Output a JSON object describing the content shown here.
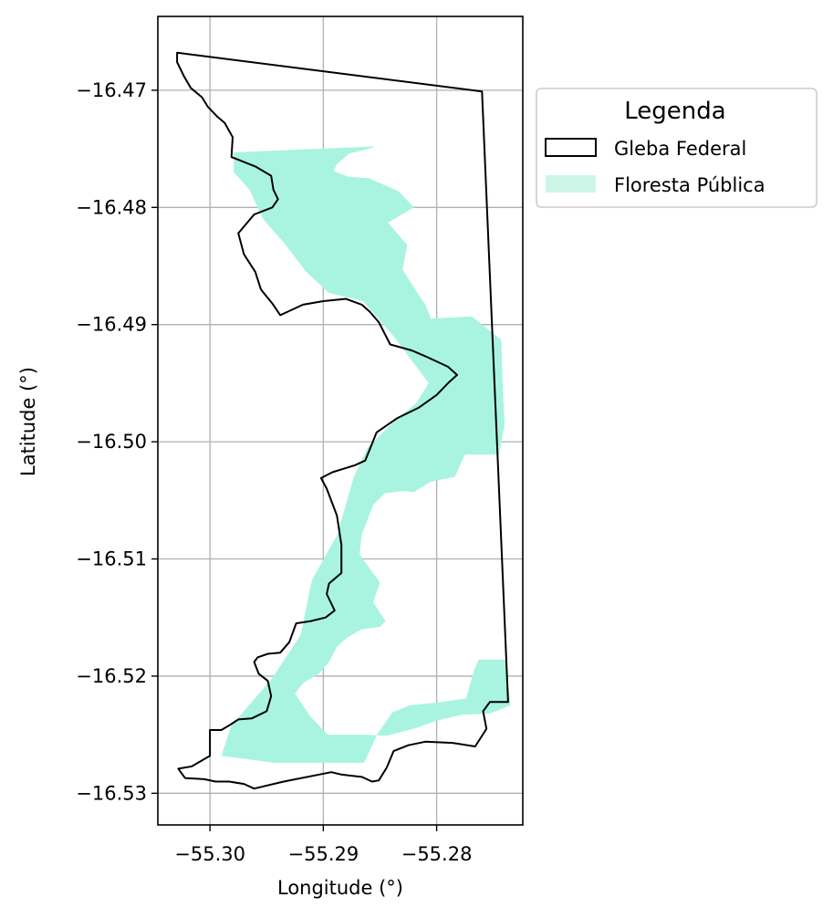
{
  "chart_data": {
    "type": "map",
    "xlabel": "Longitude (°)",
    "ylabel": "Latitude (°)",
    "xlim": [
      -55.3046,
      -55.2724
    ],
    "ylim": [
      -16.5327,
      -16.4637
    ],
    "xticks": [
      -55.3,
      -55.29,
      -55.28
    ],
    "xtick_labels": [
      "−55.30",
      "−55.29",
      "−55.28"
    ],
    "yticks": [
      -16.47,
      -16.48,
      -16.49,
      -16.5,
      -16.51,
      -16.52,
      -16.53
    ],
    "ytick_labels": [
      "−16.47",
      "−16.48",
      "−16.49",
      "−16.50",
      "−16.51",
      "−16.52",
      "−16.53"
    ],
    "grid": true,
    "legend": {
      "title": "Legenda",
      "position": "outside-top-right",
      "entries": [
        {
          "label": "Gleba Federal",
          "style": "outline",
          "edge": "#000000",
          "fill": "none"
        },
        {
          "label": "Floresta Pública",
          "style": "fill",
          "fill": "#cdf6e9"
        }
      ]
    },
    "layers": [
      {
        "name": "Floresta Pública",
        "kind": "polygon",
        "fill": "#a8f4e0",
        "coords": [
          [
            -55.2979,
            -16.4753
          ],
          [
            -55.2856,
            -16.4748
          ],
          [
            -55.2856,
            -16.4749
          ],
          [
            -55.2877,
            -16.4754
          ],
          [
            -55.2888,
            -16.4763
          ],
          [
            -55.2891,
            -16.4769
          ],
          [
            -55.2877,
            -16.4774
          ],
          [
            -55.286,
            -16.4775
          ],
          [
            -55.2834,
            -16.4786
          ],
          [
            -55.282,
            -16.48
          ],
          [
            -55.2843,
            -16.4813
          ],
          [
            -55.2826,
            -16.4832
          ],
          [
            -55.283,
            -16.4853
          ],
          [
            -55.2817,
            -16.4873
          ],
          [
            -55.281,
            -16.4883
          ],
          [
            -55.2805,
            -16.4895
          ],
          [
            -55.2769,
            -16.4893
          ],
          [
            -55.2743,
            -16.4913
          ],
          [
            -55.2742,
            -16.4945
          ],
          [
            -55.274,
            -16.4985
          ],
          [
            -55.2745,
            -16.5011
          ],
          [
            -55.2775,
            -16.5011
          ],
          [
            -55.2784,
            -16.503
          ],
          [
            -55.2805,
            -16.5034
          ],
          [
            -55.282,
            -16.5043
          ],
          [
            -55.283,
            -16.5042
          ],
          [
            -55.2846,
            -16.5044
          ],
          [
            -55.2856,
            -16.5054
          ],
          [
            -55.2866,
            -16.5079
          ],
          [
            -55.2868,
            -16.5096
          ],
          [
            -55.2857,
            -16.5111
          ],
          [
            -55.285,
            -16.512
          ],
          [
            -55.2856,
            -16.5137
          ],
          [
            -55.2845,
            -16.5153
          ],
          [
            -55.285,
            -16.5158
          ],
          [
            -55.2866,
            -16.516
          ],
          [
            -55.2879,
            -16.5167
          ],
          [
            -55.2888,
            -16.5175
          ],
          [
            -55.2895,
            -16.5188
          ],
          [
            -55.2904,
            -16.5198
          ],
          [
            -55.2918,
            -16.5206
          ],
          [
            -55.2925,
            -16.5215
          ],
          [
            -55.2911,
            -16.5235
          ],
          [
            -55.2896,
            -16.525
          ],
          [
            -55.2865,
            -16.525
          ],
          [
            -55.2844,
            -16.5251
          ],
          [
            -55.2817,
            -16.5244
          ],
          [
            -55.28,
            -16.5238
          ],
          [
            -55.2778,
            -16.5233
          ],
          [
            -55.2753,
            -16.5232
          ],
          [
            -55.2735,
            -16.5225
          ],
          [
            -55.2739,
            -16.5186
          ],
          [
            -55.2763,
            -16.5186
          ],
          [
            -55.2767,
            -16.5195
          ],
          [
            -55.2774,
            -16.5219
          ],
          [
            -55.2795,
            -16.5222
          ],
          [
            -55.2824,
            -16.5225
          ],
          [
            -55.2839,
            -16.5231
          ],
          [
            -55.2852,
            -16.5249
          ],
          [
            -55.2864,
            -16.5274
          ],
          [
            -55.2943,
            -16.5274
          ],
          [
            -55.299,
            -16.5268
          ],
          [
            -55.2981,
            -16.5242
          ],
          [
            -55.2946,
            -16.5203
          ],
          [
            -55.292,
            -16.5165
          ],
          [
            -55.291,
            -16.5118
          ],
          [
            -55.2888,
            -16.508
          ],
          [
            -55.2873,
            -16.503
          ],
          [
            -55.2861,
            -16.5005
          ],
          [
            -55.2838,
            -16.4983
          ],
          [
            -55.2818,
            -16.4967
          ],
          [
            -55.2807,
            -16.495
          ],
          [
            -55.2838,
            -16.491
          ],
          [
            -55.2865,
            -16.488
          ],
          [
            -55.2895,
            -16.4873
          ],
          [
            -55.2915,
            -16.4855
          ],
          [
            -55.2935,
            -16.483
          ],
          [
            -55.2953,
            -16.481
          ],
          [
            -55.2965,
            -16.4785
          ],
          [
            -55.2979,
            -16.477
          ]
        ]
      },
      {
        "name": "Gleba Federal",
        "kind": "polygon",
        "edge": "#000000",
        "fill": "none",
        "coords": [
          [
            -55.3029,
            -16.4668
          ],
          [
            -55.276,
            -16.4701
          ],
          [
            -55.2737,
            -16.5222
          ],
          [
            -55.2753,
            -16.5222
          ],
          [
            -55.2759,
            -16.523
          ],
          [
            -55.2756,
            -16.5245
          ],
          [
            -55.2766,
            -16.526
          ],
          [
            -55.2786,
            -16.5257
          ],
          [
            -55.281,
            -16.5256
          ],
          [
            -55.2825,
            -16.5259
          ],
          [
            -55.2838,
            -16.5264
          ],
          [
            -55.2844,
            -16.5278
          ],
          [
            -55.2851,
            -16.5289
          ],
          [
            -55.2857,
            -16.529
          ],
          [
            -55.2866,
            -16.5286
          ],
          [
            -55.2884,
            -16.5284
          ],
          [
            -55.2893,
            -16.5282
          ],
          [
            -55.2935,
            -16.529
          ],
          [
            -55.2961,
            -16.5296
          ],
          [
            -55.297,
            -16.5292
          ],
          [
            -55.2983,
            -16.529
          ],
          [
            -55.2995,
            -16.529
          ],
          [
            -55.3005,
            -16.5288
          ],
          [
            -55.3022,
            -16.5287
          ],
          [
            -55.3028,
            -16.5279
          ],
          [
            -55.3016,
            -16.5277
          ],
          [
            -55.3,
            -16.5268
          ],
          [
            -55.3,
            -16.5246
          ],
          [
            -55.299,
            -16.5246
          ],
          [
            -55.2983,
            -16.5242
          ],
          [
            -55.2975,
            -16.5237
          ],
          [
            -55.2963,
            -16.5236
          ],
          [
            -55.295,
            -16.523
          ],
          [
            -55.2946,
            -16.5217
          ],
          [
            -55.2949,
            -16.5204
          ],
          [
            -55.2957,
            -16.5198
          ],
          [
            -55.2961,
            -16.5188
          ],
          [
            -55.2958,
            -16.5184
          ],
          [
            -55.2949,
            -16.5181
          ],
          [
            -55.2938,
            -16.518
          ],
          [
            -55.293,
            -16.5171
          ],
          [
            -55.2924,
            -16.5155
          ],
          [
            -55.2911,
            -16.5153
          ],
          [
            -55.2898,
            -16.515
          ],
          [
            -55.289,
            -16.5144
          ],
          [
            -55.2897,
            -16.513
          ],
          [
            -55.2895,
            -16.5121
          ],
          [
            -55.2884,
            -16.5112
          ],
          [
            -55.2884,
            -16.5088
          ],
          [
            -55.2888,
            -16.5063
          ],
          [
            -55.2897,
            -16.504
          ],
          [
            -55.2902,
            -16.5031
          ],
          [
            -55.2892,
            -16.5026
          ],
          [
            -55.2872,
            -16.502
          ],
          [
            -55.2863,
            -16.5016
          ],
          [
            -55.2853,
            -16.4992
          ],
          [
            -55.2835,
            -16.498
          ],
          [
            -55.2816,
            -16.4971
          ],
          [
            -55.28,
            -16.496
          ],
          [
            -55.279,
            -16.495
          ],
          [
            -55.2782,
            -16.4943
          ],
          [
            -55.279,
            -16.4936
          ],
          [
            -55.281,
            -16.4927
          ],
          [
            -55.2822,
            -16.4922
          ],
          [
            -55.2841,
            -16.4917
          ],
          [
            -55.2851,
            -16.4898
          ],
          [
            -55.2859,
            -16.4889
          ],
          [
            -55.2866,
            -16.4883
          ],
          [
            -55.288,
            -16.4878
          ],
          [
            -55.29,
            -16.488
          ],
          [
            -55.2918,
            -16.4883
          ],
          [
            -55.2938,
            -16.4892
          ],
          [
            -55.2945,
            -16.4882
          ],
          [
            -55.2955,
            -16.487
          ],
          [
            -55.296,
            -16.4855
          ],
          [
            -55.297,
            -16.484
          ],
          [
            -55.2975,
            -16.4822
          ],
          [
            -55.2961,
            -16.4806
          ],
          [
            -55.2945,
            -16.48
          ],
          [
            -55.294,
            -16.4793
          ],
          [
            -55.2944,
            -16.4785
          ],
          [
            -55.2946,
            -16.4773
          ],
          [
            -55.296,
            -16.4765
          ],
          [
            -55.2981,
            -16.4757
          ],
          [
            -55.298,
            -16.474
          ],
          [
            -55.2987,
            -16.4728
          ],
          [
            -55.2993,
            -16.4723
          ],
          [
            -55.3002,
            -16.4714
          ],
          [
            -55.3007,
            -16.4706
          ],
          [
            -55.3017,
            -16.4698
          ],
          [
            -55.3023,
            -16.4688
          ],
          [
            -55.3029,
            -16.4676
          ]
        ]
      }
    ]
  }
}
